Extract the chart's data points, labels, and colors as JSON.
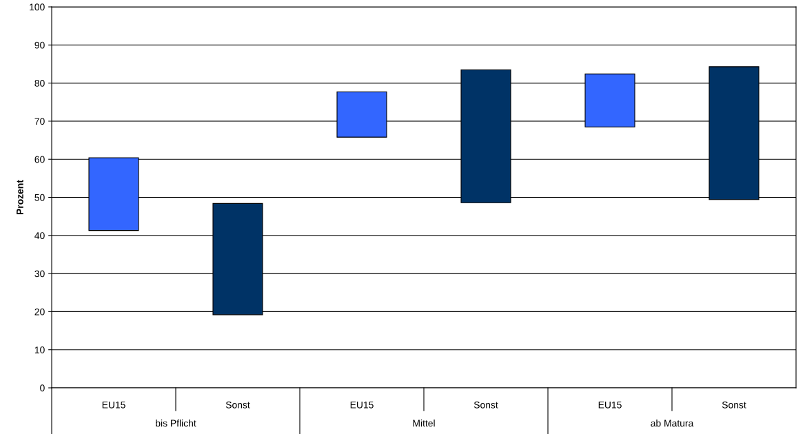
{
  "chart_data": {
    "type": "bar",
    "ylabel": "Prozent",
    "categories": [
      "EU15",
      "Sonst",
      "EU15",
      "Sonst",
      "EU15",
      "Sonst"
    ],
    "base": [
      41.3,
      19.2,
      65.8,
      48.6,
      68.5,
      49.4
    ],
    "values": [
      19.1,
      29.2,
      11.9,
      34.9,
      13.9,
      34.9
    ],
    "colors": [
      "#3366ff",
      "#003366",
      "#3366ff",
      "#003366",
      "#3366ff",
      "#003366"
    ],
    "ylim": [
      0,
      100
    ],
    "yticks": [
      0,
      10,
      20,
      30,
      40,
      50,
      60,
      70,
      80,
      90,
      100
    ],
    "grid": "y",
    "annotations": [
      "bis Pflicht",
      "Mittel",
      "ab Matura"
    ]
  }
}
